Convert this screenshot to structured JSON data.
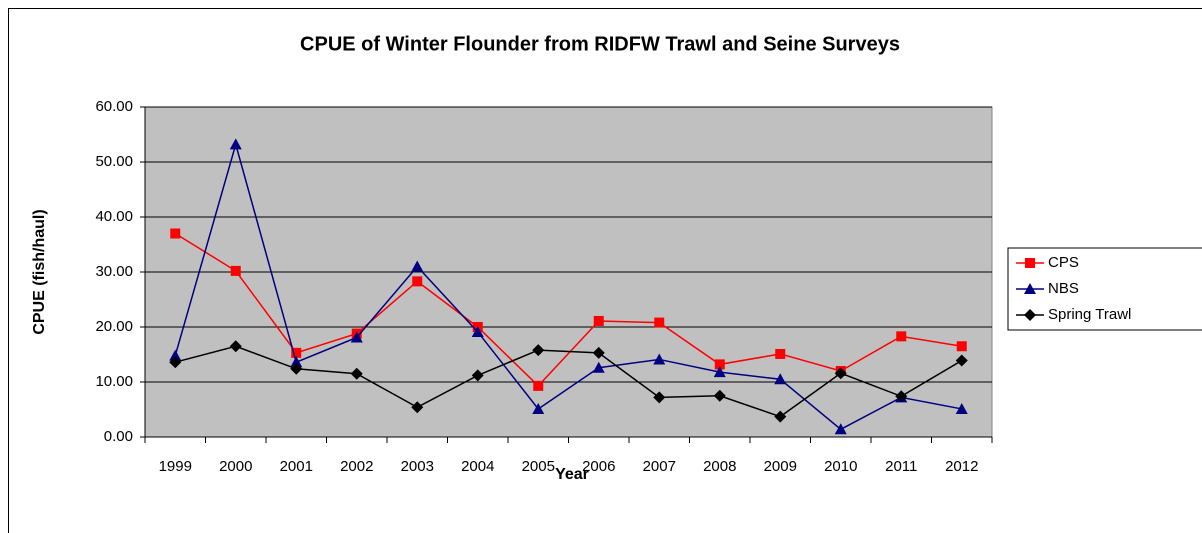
{
  "chart_data": {
    "type": "line",
    "title": "CPUE of Winter Flounder from RIDFW Trawl and Seine Surveys",
    "x_label": "Year",
    "y_label": "CPUE (fish/haul)",
    "categories": [
      "1999",
      "2000",
      "2001",
      "2002",
      "2003",
      "2004",
      "2005",
      "2006",
      "2007",
      "2008",
      "2009",
      "2010",
      "2011",
      "2012"
    ],
    "series": [
      {
        "name": "CPS",
        "color": "#ff0000",
        "marker": "square",
        "values": [
          37.0,
          30.2,
          15.3,
          18.8,
          28.3,
          20.0,
          9.3,
          21.1,
          20.8,
          13.2,
          15.1,
          12.0,
          18.3,
          16.5
        ]
      },
      {
        "name": "NBS",
        "color": "#000080",
        "marker": "triangle",
        "values": [
          14.8,
          53.2,
          13.6,
          18.1,
          31.0,
          19.1,
          5.1,
          12.6,
          14.1,
          11.8,
          10.5,
          1.4,
          7.2,
          5.1
        ]
      },
      {
        "name": "Spring Trawl",
        "color": "#000000",
        "marker": "diamond",
        "values": [
          13.6,
          16.5,
          12.4,
          11.5,
          5.4,
          11.2,
          15.8,
          15.3,
          7.2,
          7.5,
          3.7,
          11.6,
          7.4,
          13.9
        ]
      }
    ],
    "ylim": [
      0,
      60
    ],
    "yticks": [
      {
        "value": 0,
        "label": "0.00"
      },
      {
        "value": 10,
        "label": "10.00"
      },
      {
        "value": 20,
        "label": "20.00"
      },
      {
        "value": 30,
        "label": "30.00"
      },
      {
        "value": 40,
        "label": "40.00"
      },
      {
        "value": 50,
        "label": "50.00"
      },
      {
        "value": 60,
        "label": "60.00"
      }
    ],
    "grid": true,
    "plot_background": "#c0c0c0",
    "legend": "right"
  }
}
